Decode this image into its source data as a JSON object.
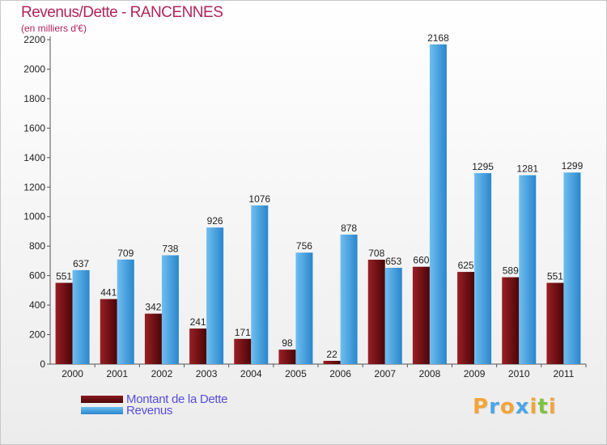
{
  "chart_data": {
    "type": "bar",
    "title": "Revenus/Dette - RANCENNES",
    "subtitle": "(en milliers d'€)",
    "categories": [
      "2000",
      "2001",
      "2002",
      "2003",
      "2004",
      "2005",
      "2006",
      "2007",
      "2008",
      "2009",
      "2010",
      "2011"
    ],
    "series": [
      {
        "name": "Montant de la Dette",
        "color": "#6b0f12",
        "values": [
          551,
          441,
          342,
          241,
          171,
          98,
          22,
          708,
          660,
          625,
          589,
          551
        ]
      },
      {
        "name": "Revenus",
        "color": "#4aa6e6",
        "values": [
          637,
          709,
          738,
          926,
          1076,
          756,
          878,
          653,
          2168,
          1295,
          1281,
          1299
        ]
      }
    ],
    "ylim": [
      0,
      2200
    ],
    "yticks": [
      0,
      200,
      400,
      600,
      800,
      1000,
      1200,
      1400,
      1600,
      1800,
      2000,
      2200
    ],
    "grid": false,
    "legend": "bottom-left",
    "xlabel": "",
    "ylabel": ""
  },
  "logo": {
    "letters": [
      "P",
      "r",
      "o",
      "x",
      "i",
      "t",
      "i"
    ],
    "colors": [
      "#f2a43a",
      "#4aa6e6",
      "#f2a43a",
      "#4aa6e6",
      "#f2a43a",
      "#7cc242",
      "#f2a43a"
    ],
    "text": "Proxiti"
  }
}
